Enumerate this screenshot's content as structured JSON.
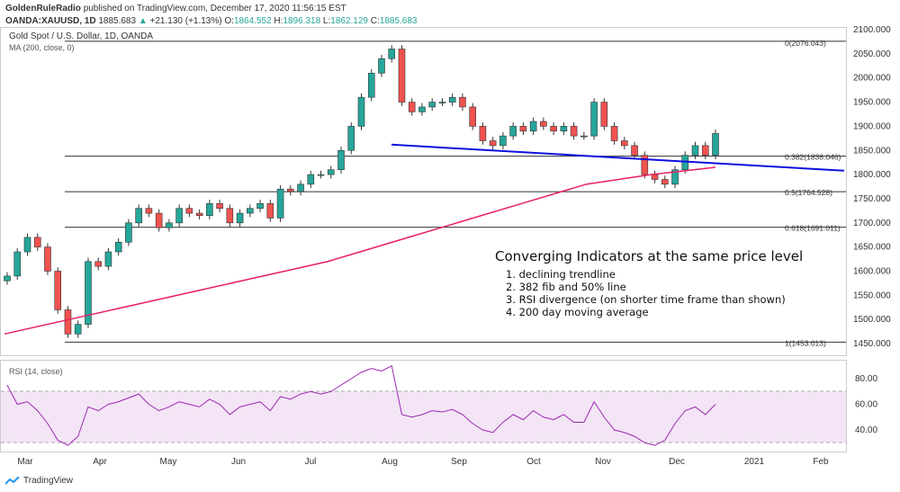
{
  "header": {
    "line1_author": "GoldenRuleRadio",
    "line1_rest": "published on TradingView.com, December 17, 2020 11:56:15 EST",
    "symbol": "OANDA:XAUUSD, 1D",
    "last": "1885.683",
    "change": "+21.130 (+1.13%)",
    "o": "1864.552",
    "h": "1896.318",
    "l": "1862.129",
    "c": "1885.683"
  },
  "legend": {
    "title": "Gold Spot / U.S. Dollar, 1D, OANDA",
    "ma": "MA (200, close, 0)",
    "rsi": "RSI (14, close)"
  },
  "annotation": {
    "title": "Converging Indicators at the same price level",
    "items": [
      "1. declining trendline",
      "2. 382 fib and 50% line",
      "3. RSI divergence (on shorter time frame than shown)",
      "4. 200 day moving average"
    ]
  },
  "fib": [
    {
      "label": "0(2076.043)",
      "value": 2076.043
    },
    {
      "label": "0.382(1838.046)",
      "value": 1838.046
    },
    {
      "label": "0.5(1764.528)",
      "value": 1764.528
    },
    {
      "label": "0.618(1691.011)",
      "value": 1691.011
    },
    {
      "label": "1(1453.013)",
      "value": 1453.013
    }
  ],
  "brand": "TradingView",
  "colors": {
    "up": "#26a69a",
    "down": "#ef5350",
    "ma": "#e91e63",
    "trend": "#1010e0",
    "rsi": "#9c27b0",
    "rsi_band": "#f3e5f5"
  },
  "chart_data": {
    "type": "candlestick",
    "price_axis": [
      "2100.000",
      "2050.000",
      "2000.000",
      "1950.000",
      "1900.000",
      "1850.000",
      "1800.000",
      "1750.000",
      "1700.000",
      "1650.000",
      "1600.000",
      "1550.000",
      "1500.000",
      "1450.000"
    ],
    "price_ticks": [
      2100,
      2050,
      2000,
      1950,
      1900,
      1850,
      1800,
      1750,
      1700,
      1650,
      1600,
      1550,
      1500,
      1450
    ],
    "rsi_axis": [
      "80.00",
      "60.00",
      "40.00"
    ],
    "rsi_ticks": [
      80,
      60,
      40
    ],
    "months": [
      "Mar",
      "Apr",
      "May",
      "Jun",
      "Jul",
      "Aug",
      "Sep",
      "Oct",
      "Nov",
      "Dec",
      "2021",
      "Feb"
    ],
    "closes": [
      1590,
      1640,
      1670,
      1650,
      1600,
      1520,
      1470,
      1490,
      1620,
      1610,
      1640,
      1660,
      1700,
      1730,
      1720,
      1690,
      1700,
      1730,
      1720,
      1715,
      1740,
      1730,
      1700,
      1720,
      1730,
      1740,
      1710,
      1770,
      1765,
      1780,
      1800,
      1800,
      1810,
      1850,
      1900,
      1960,
      2010,
      2040,
      2060,
      1950,
      1930,
      1940,
      1950,
      1950,
      1960,
      1940,
      1900,
      1870,
      1860,
      1880,
      1900,
      1890,
      1910,
      1900,
      1890,
      1900,
      1880,
      1880,
      1950,
      1900,
      1870,
      1860,
      1840,
      1800,
      1790,
      1780,
      1810,
      1840,
      1860,
      1840,
      1885
    ],
    "rsi": [
      75,
      60,
      62,
      55,
      45,
      32,
      28,
      35,
      58,
      55,
      60,
      62,
      65,
      68,
      60,
      55,
      58,
      62,
      60,
      58,
      64,
      60,
      52,
      58,
      60,
      62,
      55,
      66,
      64,
      68,
      70,
      68,
      70,
      75,
      80,
      85,
      88,
      86,
      90,
      52,
      50,
      52,
      55,
      54,
      56,
      52,
      45,
      40,
      38,
      46,
      52,
      48,
      55,
      50,
      48,
      52,
      46,
      46,
      62,
      50,
      40,
      38,
      35,
      30,
      28,
      32,
      45,
      55,
      58,
      52,
      60
    ],
    "ma200": [
      1470,
      1500,
      1530,
      1560,
      1590,
      1620,
      1660,
      1700,
      1740,
      1780,
      1800,
      1815
    ],
    "trendline": {
      "start": 1862,
      "end": 1808
    }
  }
}
